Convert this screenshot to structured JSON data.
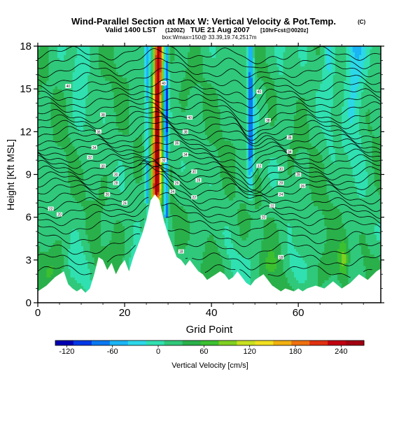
{
  "chart_data": {
    "type": "heatmap",
    "title": "Wind-Parallel Section at Max W: Vertical Velocity & Pot.Temp.",
    "title_suffix": "(C)",
    "subtitle": "Valid 1400 LST",
    "subtitle_code": "(1200Z)",
    "subtitle_date": "TUE 21 Aug 2007",
    "subtitle_fcst": "[10hrFcst@0020z]",
    "subtitle2": "box:Wmax=150@ 33.39,19.74,2517m",
    "xlabel": "Grid Point",
    "ylabel": "Height [Kft MSL]",
    "xlim": [
      0,
      79
    ],
    "ylim": [
      0,
      18
    ],
    "xticks": [
      "0",
      "20",
      "40",
      "60"
    ],
    "yticks": [
      "0",
      "3",
      "6",
      "9",
      "12",
      "15",
      "18"
    ],
    "colorbar": {
      "label": "Vertical Velocity [cm/s]",
      "range": [
        -135,
        270
      ],
      "tick_values": [
        -120,
        -60,
        0,
        60,
        120,
        180,
        240
      ],
      "tick_labels": [
        "-120",
        "-60",
        "0",
        "60",
        "120",
        "180",
        "240"
      ],
      "colors": [
        "#0000b0",
        "#0038e6",
        "#0a78f0",
        "#1ab4f5",
        "#2cd8e8",
        "#30e0b0",
        "#30c87a",
        "#2ab04a",
        "#3cc030",
        "#80d020",
        "#c8e020",
        "#f0e020",
        "#f0b010",
        "#ee7010",
        "#e03010",
        "#c00010",
        "#a00010"
      ]
    },
    "terrain_kft": [
      [
        0,
        0.8
      ],
      [
        2,
        1.2
      ],
      [
        4,
        1.8
      ],
      [
        6,
        2.2
      ],
      [
        7,
        1.3
      ],
      [
        8,
        1.0
      ],
      [
        9,
        0.8
      ],
      [
        10,
        1.0
      ],
      [
        11,
        0.7
      ],
      [
        12,
        1.0
      ],
      [
        13,
        2.0
      ],
      [
        14,
        3.2
      ],
      [
        15,
        3.0
      ],
      [
        16,
        2.3
      ],
      [
        17,
        2.8
      ],
      [
        18,
        2.0
      ],
      [
        19,
        2.6
      ],
      [
        20,
        3.0
      ],
      [
        21,
        2.2
      ],
      [
        22,
        3.2
      ],
      [
        23,
        4.0
      ],
      [
        24,
        4.8
      ],
      [
        25,
        5.8
      ],
      [
        26,
        7.2
      ],
      [
        27,
        7.6
      ],
      [
        28,
        7.2
      ],
      [
        29,
        5.8
      ],
      [
        30,
        4.8
      ],
      [
        31,
        4.0
      ],
      [
        32,
        3.2
      ],
      [
        33,
        3.0
      ],
      [
        34,
        2.6
      ],
      [
        35,
        3.0
      ],
      [
        36,
        2.6
      ],
      [
        37,
        2.2
      ],
      [
        38,
        2.0
      ],
      [
        39,
        1.6
      ],
      [
        40,
        1.8
      ],
      [
        41,
        2.0
      ],
      [
        42,
        2.2
      ],
      [
        43,
        2.0
      ],
      [
        44,
        1.6
      ],
      [
        45,
        1.8
      ],
      [
        46,
        2.2
      ],
      [
        47,
        1.8
      ],
      [
        48,
        1.4
      ],
      [
        49,
        1.2
      ],
      [
        50,
        1.6
      ],
      [
        51,
        1.8
      ],
      [
        52,
        2.0
      ],
      [
        53,
        1.6
      ],
      [
        54,
        1.2
      ],
      [
        55,
        1.0
      ],
      [
        56,
        0.8
      ],
      [
        57,
        1.0
      ],
      [
        58,
        0.9
      ],
      [
        59,
        0.8
      ],
      [
        60,
        1.0
      ],
      [
        61,
        0.8
      ],
      [
        62,
        1.0
      ],
      [
        64,
        1.2
      ],
      [
        66,
        1.0
      ],
      [
        68,
        1.5
      ],
      [
        70,
        1.0
      ],
      [
        72,
        1.4
      ],
      [
        74,
        2.0
      ],
      [
        76,
        1.6
      ],
      [
        78,
        2.2
      ],
      [
        79,
        2.4
      ]
    ],
    "theta_contours_kft": [
      2.2,
      3.0,
      3.8,
      4.6,
      5.3,
      5.9,
      6.4,
      6.9,
      7.4,
      7.9,
      8.3,
      8.7,
      9.1,
      9.5,
      9.9,
      10.3,
      10.7,
      11.1,
      11.5,
      11.9,
      12.3,
      12.7,
      13.1,
      13.6,
      14.1,
      14.6,
      15.1,
      15.7,
      16.3,
      16.9,
      17.5
    ],
    "contour_labels": [
      {
        "x": 7,
        "y": 15.2,
        "t": "40"
      },
      {
        "x": 15,
        "y": 13.2,
        "t": "38"
      },
      {
        "x": 14,
        "y": 12.0,
        "t": "36"
      },
      {
        "x": 13,
        "y": 10.9,
        "t": "34"
      },
      {
        "x": 12,
        "y": 10.2,
        "t": "32"
      },
      {
        "x": 15,
        "y": 9.6,
        "t": "30"
      },
      {
        "x": 18,
        "y": 9.0,
        "t": "30"
      },
      {
        "x": 18,
        "y": 8.4,
        "t": "28"
      },
      {
        "x": 16,
        "y": 7.6,
        "t": "26"
      },
      {
        "x": 20,
        "y": 7.0,
        "t": "24"
      },
      {
        "x": 3,
        "y": 6.6,
        "t": "22"
      },
      {
        "x": 5,
        "y": 6.2,
        "t": "20"
      },
      {
        "x": 29,
        "y": 15.4,
        "t": "40"
      },
      {
        "x": 35,
        "y": 13.0,
        "t": "40"
      },
      {
        "x": 34,
        "y": 12.0,
        "t": "38"
      },
      {
        "x": 32,
        "y": 11.2,
        "t": "36"
      },
      {
        "x": 34,
        "y": 10.4,
        "t": "34"
      },
      {
        "x": 29,
        "y": 10.0,
        "t": "32"
      },
      {
        "x": 36,
        "y": 9.2,
        "t": "30"
      },
      {
        "x": 37,
        "y": 8.6,
        "t": "28"
      },
      {
        "x": 32,
        "y": 8.4,
        "t": "26"
      },
      {
        "x": 31,
        "y": 7.8,
        "t": "24"
      },
      {
        "x": 36,
        "y": 7.4,
        "t": "22"
      },
      {
        "x": 33,
        "y": 3.6,
        "t": "18"
      },
      {
        "x": 51,
        "y": 14.8,
        "t": "40"
      },
      {
        "x": 53,
        "y": 12.8,
        "t": "38"
      },
      {
        "x": 58,
        "y": 11.6,
        "t": "36"
      },
      {
        "x": 58,
        "y": 10.6,
        "t": "34"
      },
      {
        "x": 51,
        "y": 9.6,
        "t": "32"
      },
      {
        "x": 56,
        "y": 9.4,
        "t": "30"
      },
      {
        "x": 60,
        "y": 9.0,
        "t": "28"
      },
      {
        "x": 56,
        "y": 8.4,
        "t": "28"
      },
      {
        "x": 61,
        "y": 8.2,
        "t": "26"
      },
      {
        "x": 56,
        "y": 7.6,
        "t": "24"
      },
      {
        "x": 54,
        "y": 6.8,
        "t": "22"
      },
      {
        "x": 52,
        "y": 6.0,
        "t": "20"
      },
      {
        "x": 56,
        "y": 3.2,
        "t": "18"
      }
    ]
  }
}
